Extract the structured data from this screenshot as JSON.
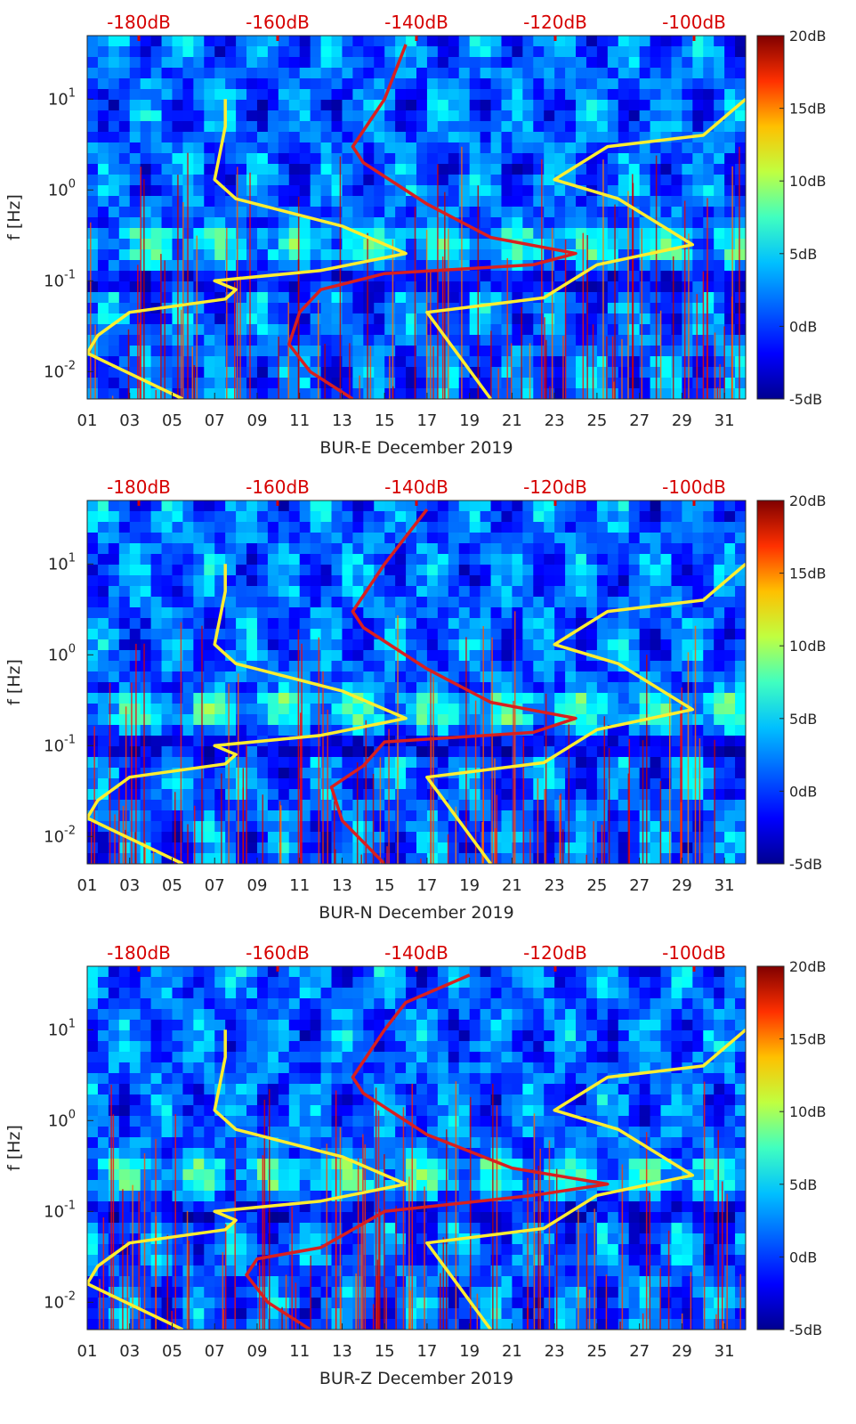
{
  "colorbar": {
    "colors": [
      "#00008f",
      "#0000ff",
      "#0080ff",
      "#00ffff",
      "#80ff80",
      "#ffff00",
      "#ff8000",
      "#ff0000",
      "#800000"
    ],
    "ticks": [
      "20dB",
      "15dB",
      "10dB",
      "5dB",
      "0dB",
      "-5dB"
    ]
  },
  "colors": {
    "yellow_curve": "#ffee30",
    "red_curve": "#d91f1f",
    "top_axis_text": "#d60000"
  },
  "chart_data": [
    {
      "type": "heatmap",
      "xlabel": "BUR-E December 2019",
      "ylabel": "f [Hz]",
      "x_ticks": [
        "01",
        "03",
        "05",
        "07",
        "09",
        "11",
        "13",
        "15",
        "17",
        "19",
        "21",
        "23",
        "25",
        "27",
        "29",
        "31"
      ],
      "y_ticks": [
        {
          "value": 10,
          "label": "10^1"
        },
        {
          "value": 1,
          "label": "10^0"
        },
        {
          "value": 0.1,
          "label": "10^-1"
        },
        {
          "value": 0.01,
          "label": "10^-2"
        }
      ],
      "top_ticks": [
        "-180dB",
        "-160dB",
        "-140dB",
        "-120dB",
        "-100dB"
      ],
      "xlim": [
        1,
        32
      ],
      "ylim_hz": [
        0.005,
        50
      ],
      "colorbar_range_db": [
        -5,
        20
      ],
      "series": [
        {
          "color": "yellow",
          "points": [
            [
              5.5,
              0.005
            ],
            [
              1,
              0.016
            ],
            [
              1.5,
              0.025
            ],
            [
              3,
              0.045
            ],
            [
              7.5,
              0.063
            ],
            [
              8,
              0.08
            ],
            [
              7,
              0.1
            ],
            [
              12,
              0.13
            ],
            [
              16,
              0.2
            ],
            [
              13,
              0.4
            ],
            [
              8,
              0.8
            ],
            [
              7,
              1.3
            ],
            [
              7.5,
              5
            ],
            [
              7.5,
              10
            ]
          ]
        },
        {
          "color": "red",
          "points": [
            [
              13.5,
              0.005
            ],
            [
              11.5,
              0.01
            ],
            [
              10.5,
              0.02
            ],
            [
              11,
              0.045
            ],
            [
              12,
              0.08
            ],
            [
              15,
              0.12
            ],
            [
              22,
              0.15
            ],
            [
              24,
              0.2
            ],
            [
              20,
              0.3
            ],
            [
              17,
              0.7
            ],
            [
              14,
              2
            ],
            [
              13.5,
              3
            ],
            [
              15,
              10
            ],
            [
              15.5,
              20
            ],
            [
              16,
              40
            ]
          ]
        },
        {
          "color": "yellow",
          "points": [
            [
              20,
              0.005
            ],
            [
              17,
              0.045
            ],
            [
              22.5,
              0.065
            ],
            [
              25,
              0.15
            ],
            [
              29.5,
              0.25
            ],
            [
              26,
              0.8
            ],
            [
              23,
              1.3
            ],
            [
              25.5,
              3
            ],
            [
              30,
              4
            ],
            [
              32,
              10
            ]
          ]
        }
      ]
    },
    {
      "type": "heatmap",
      "xlabel": "BUR-N December 2019",
      "ylabel": "f [Hz]",
      "x_ticks": [
        "01",
        "03",
        "05",
        "07",
        "09",
        "11",
        "13",
        "15",
        "17",
        "19",
        "21",
        "23",
        "25",
        "27",
        "29",
        "31"
      ],
      "y_ticks": [
        {
          "value": 10,
          "label": "10^1"
        },
        {
          "value": 1,
          "label": "10^0"
        },
        {
          "value": 0.1,
          "label": "10^-1"
        },
        {
          "value": 0.01,
          "label": "10^-2"
        }
      ],
      "top_ticks": [
        "-180dB",
        "-160dB",
        "-140dB",
        "-120dB",
        "-100dB"
      ],
      "xlim": [
        1,
        32
      ],
      "ylim_hz": [
        0.005,
        50
      ],
      "colorbar_range_db": [
        -5,
        20
      ],
      "series": [
        {
          "color": "yellow",
          "points": [
            [
              5.5,
              0.005
            ],
            [
              1,
              0.016
            ],
            [
              1.5,
              0.025
            ],
            [
              3,
              0.045
            ],
            [
              7.5,
              0.063
            ],
            [
              8,
              0.08
            ],
            [
              7,
              0.1
            ],
            [
              12,
              0.13
            ],
            [
              16,
              0.2
            ],
            [
              13,
              0.4
            ],
            [
              8,
              0.8
            ],
            [
              7,
              1.3
            ],
            [
              7.5,
              5
            ],
            [
              7.5,
              10
            ]
          ]
        },
        {
          "color": "red",
          "points": [
            [
              15,
              0.005
            ],
            [
              13,
              0.015
            ],
            [
              12.5,
              0.035
            ],
            [
              14,
              0.06
            ],
            [
              15,
              0.11
            ],
            [
              22,
              0.14
            ],
            [
              24,
              0.2
            ],
            [
              20,
              0.3
            ],
            [
              17,
              0.7
            ],
            [
              14,
              2
            ],
            [
              13.5,
              3
            ],
            [
              15,
              10
            ],
            [
              16,
              20
            ],
            [
              17,
              40
            ]
          ]
        },
        {
          "color": "yellow",
          "points": [
            [
              20,
              0.005
            ],
            [
              17,
              0.045
            ],
            [
              22.5,
              0.065
            ],
            [
              25,
              0.15
            ],
            [
              29.5,
              0.25
            ],
            [
              26,
              0.8
            ],
            [
              23,
              1.3
            ],
            [
              25.5,
              3
            ],
            [
              30,
              4
            ],
            [
              32,
              10
            ]
          ]
        }
      ]
    },
    {
      "type": "heatmap",
      "xlabel": "BUR-Z December 2019",
      "ylabel": "f [Hz]",
      "x_ticks": [
        "01",
        "03",
        "05",
        "07",
        "09",
        "11",
        "13",
        "15",
        "17",
        "19",
        "21",
        "23",
        "25",
        "27",
        "29",
        "31"
      ],
      "y_ticks": [
        {
          "value": 10,
          "label": "10^1"
        },
        {
          "value": 1,
          "label": "10^0"
        },
        {
          "value": 0.1,
          "label": "10^-1"
        },
        {
          "value": 0.01,
          "label": "10^-2"
        }
      ],
      "top_ticks": [
        "-180dB",
        "-160dB",
        "-140dB",
        "-120dB",
        "-100dB"
      ],
      "xlim": [
        1,
        32
      ],
      "ylim_hz": [
        0.005,
        50
      ],
      "colorbar_range_db": [
        -5,
        20
      ],
      "series": [
        {
          "color": "yellow",
          "points": [
            [
              5.5,
              0.005
            ],
            [
              1,
              0.016
            ],
            [
              1.5,
              0.025
            ],
            [
              3,
              0.045
            ],
            [
              7.5,
              0.063
            ],
            [
              8,
              0.08
            ],
            [
              7,
              0.1
            ],
            [
              12,
              0.13
            ],
            [
              16,
              0.2
            ],
            [
              13,
              0.4
            ],
            [
              8,
              0.8
            ],
            [
              7,
              1.3
            ],
            [
              7.5,
              5
            ],
            [
              7.5,
              10
            ]
          ]
        },
        {
          "color": "red",
          "points": [
            [
              11.5,
              0.005
            ],
            [
              9.5,
              0.01
            ],
            [
              8.5,
              0.02
            ],
            [
              9,
              0.03
            ],
            [
              12,
              0.04
            ],
            [
              15,
              0.1
            ],
            [
              22,
              0.15
            ],
            [
              25.5,
              0.2
            ],
            [
              21,
              0.3
            ],
            [
              17,
              0.7
            ],
            [
              14,
              2
            ],
            [
              13.5,
              3
            ],
            [
              15,
              10
            ],
            [
              16,
              20
            ],
            [
              19,
              40
            ]
          ]
        },
        {
          "color": "yellow",
          "points": [
            [
              20,
              0.005
            ],
            [
              17,
              0.045
            ],
            [
              22.5,
              0.065
            ],
            [
              25,
              0.15
            ],
            [
              29.5,
              0.25
            ],
            [
              26,
              0.8
            ],
            [
              23,
              1.3
            ],
            [
              25.5,
              3
            ],
            [
              30,
              4
            ],
            [
              32,
              10
            ]
          ]
        }
      ]
    }
  ]
}
